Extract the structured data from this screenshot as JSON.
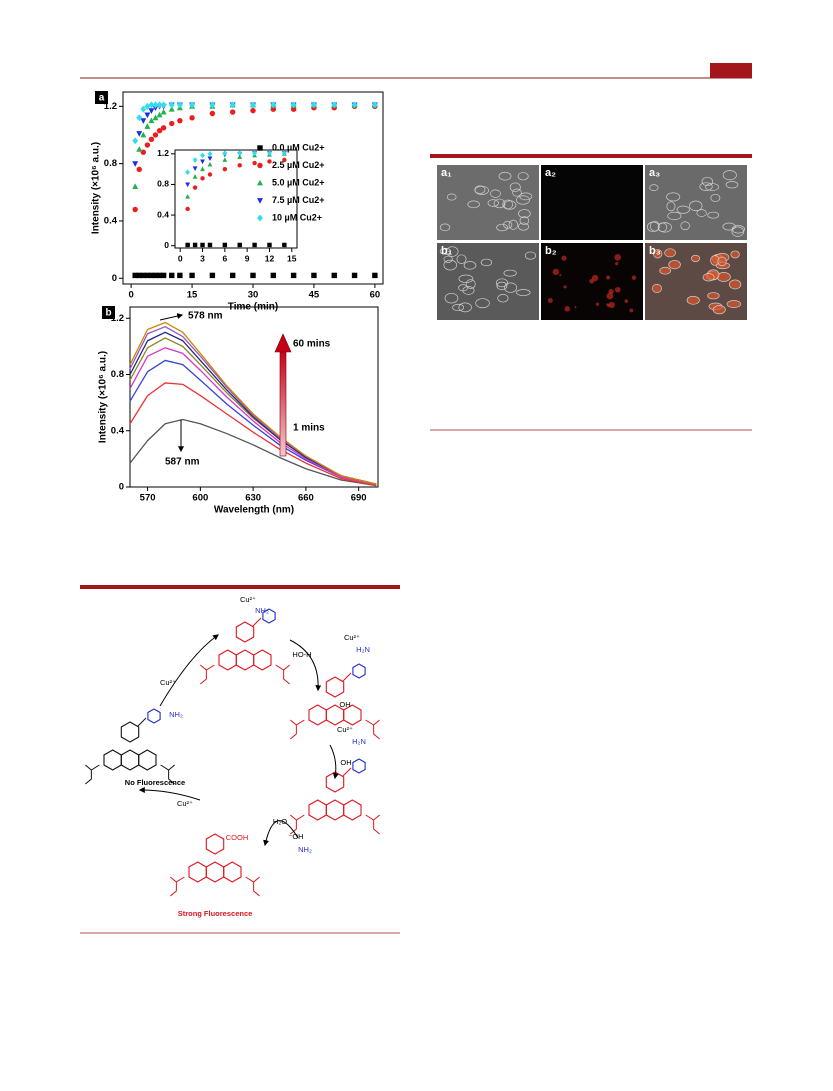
{
  "chart_data": [
    {
      "type": "scatter",
      "panel": "a",
      "xlabel": "Time (min)",
      "ylabel": "Intensity (×10⁶ a.u.)",
      "x": [
        1,
        2,
        3,
        4,
        5,
        6,
        7,
        8,
        10,
        12,
        15,
        20,
        25,
        30,
        35,
        40,
        45,
        50,
        55,
        60
      ],
      "xlim": [
        -2,
        62
      ],
      "xticks": [
        0,
        15,
        30,
        45,
        60
      ],
      "ylim": [
        -0.04,
        1.3
      ],
      "yticks": [
        0,
        0.4,
        0.8,
        1.2
      ],
      "legend": "center-right",
      "series": [
        {
          "name": "0.0 µM Cu2+",
          "color": "#000000",
          "marker": "square",
          "values": [
            0.02,
            0.02,
            0.02,
            0.02,
            0.02,
            0.02,
            0.02,
            0.02,
            0.02,
            0.02,
            0.02,
            0.02,
            0.02,
            0.02,
            0.02,
            0.02,
            0.02,
            0.02,
            0.02,
            0.02
          ]
        },
        {
          "name": "2.5 µM Cu2+",
          "color": "#ee1c1c",
          "marker": "circle",
          "values": [
            0.48,
            0.76,
            0.88,
            0.93,
            0.97,
            1.0,
            1.03,
            1.05,
            1.08,
            1.1,
            1.12,
            1.15,
            1.16,
            1.17,
            1.18,
            1.18,
            1.19,
            1.19,
            1.2,
            1.2
          ]
        },
        {
          "name": "5.0 µM Cu2+",
          "color": "#22b14c",
          "marker": "triangle-up",
          "values": [
            0.64,
            0.9,
            1.0,
            1.06,
            1.1,
            1.12,
            1.14,
            1.16,
            1.18,
            1.19,
            1.2,
            1.2,
            1.21,
            1.21,
            1.21,
            1.21,
            1.21,
            1.21,
            1.21,
            1.21
          ]
        },
        {
          "name": "7.5 µM Cu2+",
          "color": "#1a2ee8",
          "marker": "triangle-down",
          "values": [
            0.8,
            1.01,
            1.1,
            1.14,
            1.17,
            1.19,
            1.2,
            1.2,
            1.21,
            1.21,
            1.21,
            1.21,
            1.21,
            1.21,
            1.21,
            1.21,
            1.21,
            1.21,
            1.21,
            1.21
          ]
        },
        {
          "name": "10 µM Cu2+",
          "color": "#33ddee",
          "marker": "diamond",
          "values": [
            0.96,
            1.12,
            1.18,
            1.2,
            1.21,
            1.21,
            1.21,
            1.21,
            1.21,
            1.21,
            1.21,
            1.21,
            1.21,
            1.21,
            1.21,
            1.21,
            1.21,
            1.21,
            1.21,
            1.21
          ]
        }
      ]
    },
    {
      "type": "scatter",
      "x": [
        1,
        2,
        3,
        4,
        6,
        8,
        10,
        12,
        14
      ],
      "xlim": [
        -0.7,
        15.7
      ],
      "xticks": [
        0,
        3,
        6,
        9,
        12,
        15
      ],
      "ylim": [
        -0.03,
        1.25
      ],
      "yticks": [
        0,
        0.4,
        0.8,
        1.2
      ],
      "series": [
        {
          "color": "#000000",
          "marker": "square",
          "values": [
            0.01,
            0.01,
            0.01,
            0.01,
            0.01,
            0.01,
            0.01,
            0.01,
            0.01
          ]
        },
        {
          "color": "#ee1c1c",
          "marker": "circle",
          "values": [
            0.48,
            0.76,
            0.88,
            0.93,
            1.0,
            1.05,
            1.08,
            1.1,
            1.12
          ]
        },
        {
          "color": "#22b14c",
          "marker": "triangle-up",
          "values": [
            0.64,
            0.9,
            1.0,
            1.06,
            1.12,
            1.16,
            1.18,
            1.19,
            1.2
          ]
        },
        {
          "color": "#1a2ee8",
          "marker": "triangle-down",
          "values": [
            0.8,
            1.01,
            1.1,
            1.14,
            1.19,
            1.2,
            1.21,
            1.21,
            1.21
          ]
        },
        {
          "color": "#33ddee",
          "marker": "diamond",
          "values": [
            0.96,
            1.12,
            1.18,
            1.2,
            1.21,
            1.21,
            1.21,
            1.21,
            1.21
          ]
        }
      ]
    },
    {
      "type": "line",
      "panel": "b",
      "xlabel": "Wavelength (nm)",
      "ylabel": "Intensity (×10⁶ a.u.)",
      "x": [
        560,
        570,
        580,
        590,
        600,
        615,
        630,
        645,
        660,
        680,
        700
      ],
      "xlim": [
        560,
        701
      ],
      "xticks": [
        570,
        600,
        630,
        660,
        690
      ],
      "ylim": [
        0,
        1.28
      ],
      "yticks": [
        0,
        0.4,
        0.8,
        1.2
      ],
      "annotations": [
        "578 nm",
        "587 nm",
        "60 mins",
        "1 mins"
      ],
      "series": [
        {
          "color": "#555555",
          "values": [
            0.17,
            0.33,
            0.45,
            0.48,
            0.45,
            0.38,
            0.3,
            0.21,
            0.13,
            0.05,
            0.01
          ]
        },
        {
          "color": "#ee3333",
          "values": [
            0.45,
            0.65,
            0.74,
            0.73,
            0.65,
            0.52,
            0.39,
            0.27,
            0.17,
            0.06,
            0.01
          ]
        },
        {
          "color": "#3344dd",
          "values": [
            0.61,
            0.82,
            0.9,
            0.87,
            0.76,
            0.59,
            0.44,
            0.3,
            0.19,
            0.07,
            0.02
          ]
        },
        {
          "color": "#dd33cc",
          "values": [
            0.7,
            0.93,
            0.99,
            0.95,
            0.83,
            0.64,
            0.47,
            0.32,
            0.2,
            0.07,
            0.02
          ]
        },
        {
          "color": "#888822",
          "values": [
            0.76,
            0.99,
            1.06,
            1.0,
            0.87,
            0.67,
            0.49,
            0.34,
            0.21,
            0.08,
            0.02
          ]
        },
        {
          "color": "#222288",
          "values": [
            0.8,
            1.04,
            1.1,
            1.04,
            0.9,
            0.69,
            0.5,
            0.34,
            0.21,
            0.08,
            0.02
          ]
        },
        {
          "color": "#9955cc",
          "values": [
            0.84,
            1.09,
            1.14,
            1.07,
            0.93,
            0.71,
            0.51,
            0.35,
            0.22,
            0.08,
            0.02
          ]
        },
        {
          "color": "#cc8800",
          "values": [
            0.87,
            1.12,
            1.17,
            1.1,
            0.95,
            0.72,
            0.52,
            0.36,
            0.22,
            0.08,
            0.02
          ]
        }
      ]
    }
  ],
  "scheme": {
    "labels": [
      "Cu²⁺",
      "NH₂",
      "HO-H",
      "Cu²⁺",
      "H₂N",
      "OH",
      "Cu²⁺",
      "H₂N",
      "OH",
      "Cu²⁺",
      "NH₂",
      "No Fluorescence",
      "Cu²⁺",
      "H₂O",
      "⁻OH",
      "COOH",
      "NH₂",
      "Strong Fluorescence"
    ]
  },
  "micrographs": {
    "labels": [
      "a₁",
      "a₂",
      "a₃",
      "b₁",
      "b₂",
      "b₃"
    ]
  }
}
